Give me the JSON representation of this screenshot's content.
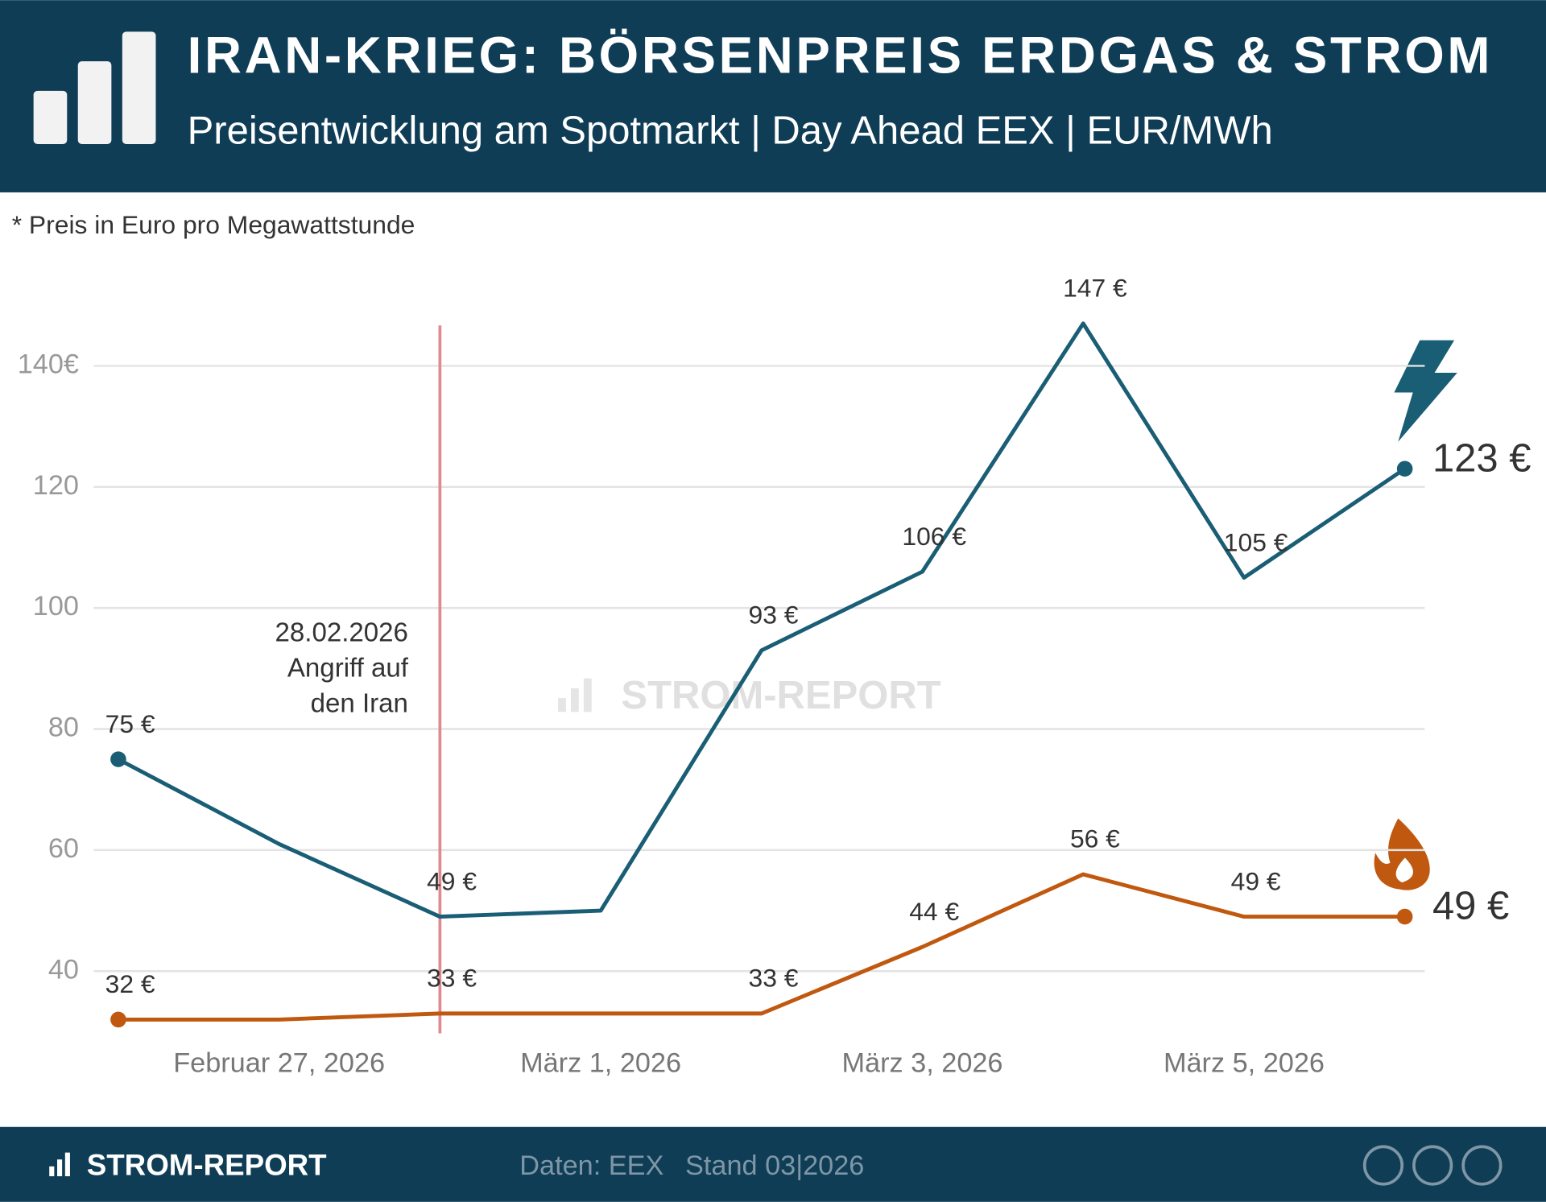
{
  "header": {
    "title": "IRAN-KRIEG: BÖRSENPREIS ERDGAS & STROM",
    "subtitle": "Preisentwicklung am Spotmarkt | Day Ahead EEX | EUR/MWh"
  },
  "note": "* Preis in Euro pro Megawattstunde",
  "chart_data": {
    "type": "line",
    "categories": [
      null,
      "Februar 27, 2026",
      null,
      "März 1, 2026",
      null,
      "März 3, 2026",
      null,
      "März 5, 2026",
      null
    ],
    "series": [
      {
        "color": "#1a5e75",
        "values": [
          75,
          61,
          49,
          50,
          93,
          106,
          147,
          105,
          123
        ],
        "value_labels": [
          "75 €",
          null,
          "49 €",
          null,
          "93 €",
          "106 €",
          "147 €",
          "105 €",
          "123 €"
        ]
      },
      {
        "color": "#c0590f",
        "values": [
          32,
          32,
          33,
          33,
          33,
          44,
          56,
          49,
          49
        ],
        "value_labels": [
          "32 €",
          null,
          "33 €",
          null,
          "33 €",
          "44 €",
          "56 €",
          "49 €",
          "49 €"
        ]
      }
    ],
    "ylim": [
      29,
      152
    ],
    "yticks": [
      40,
      60,
      80,
      100,
      120,
      {
        "value": 140,
        "label": "140€"
      }
    ],
    "grid": true,
    "annotation": [
      "28.02.2026",
      "Angriff auf",
      "den Iran"
    ],
    "watermark": "STROM-REPORT"
  },
  "footer": {
    "brand": "STROM-REPORT",
    "source": "Daten: EEX",
    "date": "Stand 03|2026"
  }
}
